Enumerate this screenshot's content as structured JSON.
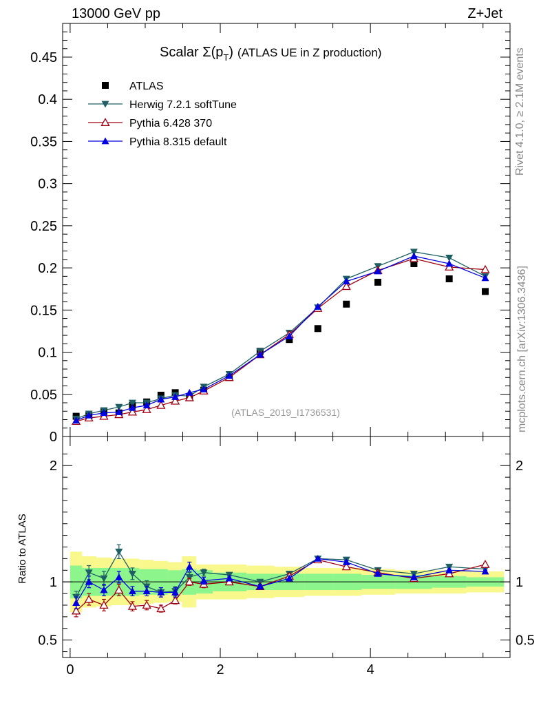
{
  "header": {
    "left": "13000 GeV pp",
    "right": "Z+Jet"
  },
  "side": {
    "rivet": "Rivet 4.1.0, ≥ 2.1M events",
    "mcplots": "mcplots.cern.ch [arXiv:1306.3436]"
  },
  "watermark": "(ATLAS_2019_I1736531)",
  "colors": {
    "atlas": "#000000",
    "herwig": "#1e5f63",
    "py6": "#a00010",
    "py8": "#0000e0",
    "band_inner": "#8cf58c",
    "band_outer": "#f8f88c"
  },
  "chart_data": [
    {
      "type": "line",
      "title_main": "Scalar Σ(p",
      "title_sub": "T",
      "title_close": ")",
      "title_rest": "(ATLAS UE in Z production)",
      "xlabel": "",
      "ylabel": "",
      "xlim": [
        -0.1,
        5.86
      ],
      "ylim": [
        0,
        0.49
      ],
      "yticks": [
        0,
        0.05,
        0.1,
        0.15,
        0.2,
        0.25,
        0.3,
        0.35,
        0.4,
        0.45
      ],
      "ytick_labels": [
        "0",
        "0.05",
        "0.1",
        "0.15",
        "0.2",
        "0.25",
        "0.3",
        "0.35",
        "0.4",
        "0.45"
      ],
      "x": [
        0.08,
        0.25,
        0.45,
        0.65,
        0.83,
        1.02,
        1.21,
        1.4,
        1.59,
        1.78,
        2.12,
        2.53,
        2.92,
        3.3,
        3.68,
        4.1,
        4.58,
        5.05,
        5.53
      ],
      "series": [
        {
          "name": "ATLAS",
          "marker": "square",
          "values": [
            0.024,
            0.025,
            0.03,
            0.028,
            0.037,
            0.041,
            0.049,
            0.052,
            0.046,
            0.055,
            0.07,
            0.101,
            0.115,
            0.128,
            0.157,
            0.183,
            0.205,
            0.187,
            0.172
          ]
        },
        {
          "name": "Herwig 7.2.1 softTune",
          "marker": "triangle-down",
          "values": [
            0.021,
            0.027,
            0.031,
            0.035,
            0.04,
            0.04,
            0.045,
            0.049,
            0.048,
            0.059,
            0.074,
            0.101,
            0.123,
            0.153,
            0.187,
            0.202,
            0.219,
            0.212,
            0.19
          ]
        },
        {
          "name": "Pythia 6.428 370",
          "marker": "triangle-open",
          "values": [
            0.018,
            0.022,
            0.024,
            0.026,
            0.029,
            0.032,
            0.037,
            0.042,
            0.046,
            0.054,
            0.07,
            0.097,
            0.121,
            0.152,
            0.178,
            0.197,
            0.211,
            0.201,
            0.198
          ]
        },
        {
          "name": "Pythia 8.315 default",
          "marker": "triangle-up",
          "values": [
            0.019,
            0.025,
            0.028,
            0.029,
            0.034,
            0.037,
            0.044,
            0.047,
            0.052,
            0.056,
            0.072,
            0.097,
            0.119,
            0.154,
            0.184,
            0.196,
            0.214,
            0.205,
            0.188
          ]
        }
      ]
    },
    {
      "type": "line",
      "ylabel": "Ratio to ATLAS",
      "xlim": [
        -0.1,
        5.86
      ],
      "ylim": [
        0.35,
        2.25
      ],
      "xticks": [
        0,
        2,
        4
      ],
      "xtick_labels": [
        "0",
        "2",
        "4"
      ],
      "yticks": [
        0.5,
        1,
        2
      ],
      "ytick_labels": [
        "0.5",
        "1",
        "2"
      ],
      "reference": 1,
      "x": [
        0.08,
        0.25,
        0.45,
        0.65,
        0.83,
        1.02,
        1.21,
        1.4,
        1.59,
        1.78,
        2.12,
        2.53,
        2.92,
        3.3,
        3.68,
        4.1,
        4.58,
        5.05,
        5.53
      ],
      "bins": [
        [
          0,
          0.16
        ],
        [
          0.16,
          0.35
        ],
        [
          0.35,
          0.55
        ],
        [
          0.55,
          0.75
        ],
        [
          0.75,
          0.92
        ],
        [
          0.92,
          1.11
        ],
        [
          1.11,
          1.3
        ],
        [
          1.3,
          1.49
        ],
        [
          1.49,
          1.68
        ],
        [
          1.68,
          1.9
        ],
        [
          1.9,
          2.35
        ],
        [
          2.35,
          2.72
        ],
        [
          2.72,
          3.12
        ],
        [
          3.12,
          3.5
        ],
        [
          3.5,
          3.88
        ],
        [
          3.88,
          4.33
        ],
        [
          4.33,
          4.82
        ],
        [
          4.82,
          5.28
        ],
        [
          5.28,
          5.78
        ]
      ],
      "band_inner_halfwidth": [
        0.14,
        0.12,
        0.12,
        0.12,
        0.12,
        0.11,
        0.11,
        0.1,
        0.11,
        0.1,
        0.08,
        0.07,
        0.07,
        0.07,
        0.07,
        0.06,
        0.06,
        0.05,
        0.04
      ],
      "band_outer_halfwidth": [
        0.26,
        0.22,
        0.21,
        0.2,
        0.2,
        0.19,
        0.18,
        0.17,
        0.22,
        0.15,
        0.15,
        0.14,
        0.13,
        0.12,
        0.12,
        0.11,
        0.1,
        0.1,
        0.09
      ],
      "series": [
        {
          "name": "Herwig 7.2.1 softTune",
          "marker": "triangle-down",
          "values": [
            0.87,
            1.08,
            1.03,
            1.26,
            1.07,
            0.96,
            0.91,
            0.92,
            1.04,
            1.08,
            1.06,
            1.0,
            1.07,
            1.2,
            1.19,
            1.1,
            1.07,
            1.13,
            1.11
          ],
          "errors": [
            0.05,
            0.06,
            0.06,
            0.06,
            0.05,
            0.05,
            0.04,
            0.04,
            0.04,
            0.03,
            0.02,
            0.02,
            0.02,
            0.02,
            0.01,
            0.01,
            0.01,
            0.01,
            0.01
          ]
        },
        {
          "name": "Pythia 6.428 370",
          "marker": "triangle-open",
          "values": [
            0.75,
            0.85,
            0.8,
            0.93,
            0.79,
            0.8,
            0.77,
            0.84,
            1.0,
            0.98,
            1.0,
            0.96,
            1.05,
            1.19,
            1.13,
            1.08,
            1.03,
            1.07,
            1.15
          ],
          "errors": [
            0.05,
            0.05,
            0.05,
            0.05,
            0.04,
            0.04,
            0.03,
            0.03,
            0.03,
            0.03,
            0.02,
            0.02,
            0.02,
            0.01,
            0.01,
            0.01,
            0.01,
            0.01,
            0.01
          ]
        },
        {
          "name": "Pythia 8.315 default",
          "marker": "triangle-up",
          "values": [
            0.82,
            1.0,
            0.93,
            1.04,
            0.92,
            0.92,
            0.91,
            0.91,
            1.13,
            1.01,
            1.03,
            0.96,
            1.03,
            1.2,
            1.17,
            1.07,
            1.04,
            1.1,
            1.09
          ],
          "errors": [
            0.05,
            0.05,
            0.05,
            0.05,
            0.04,
            0.04,
            0.04,
            0.04,
            0.04,
            0.03,
            0.02,
            0.02,
            0.02,
            0.01,
            0.01,
            0.01,
            0.01,
            0.01,
            0.01
          ]
        }
      ]
    }
  ]
}
